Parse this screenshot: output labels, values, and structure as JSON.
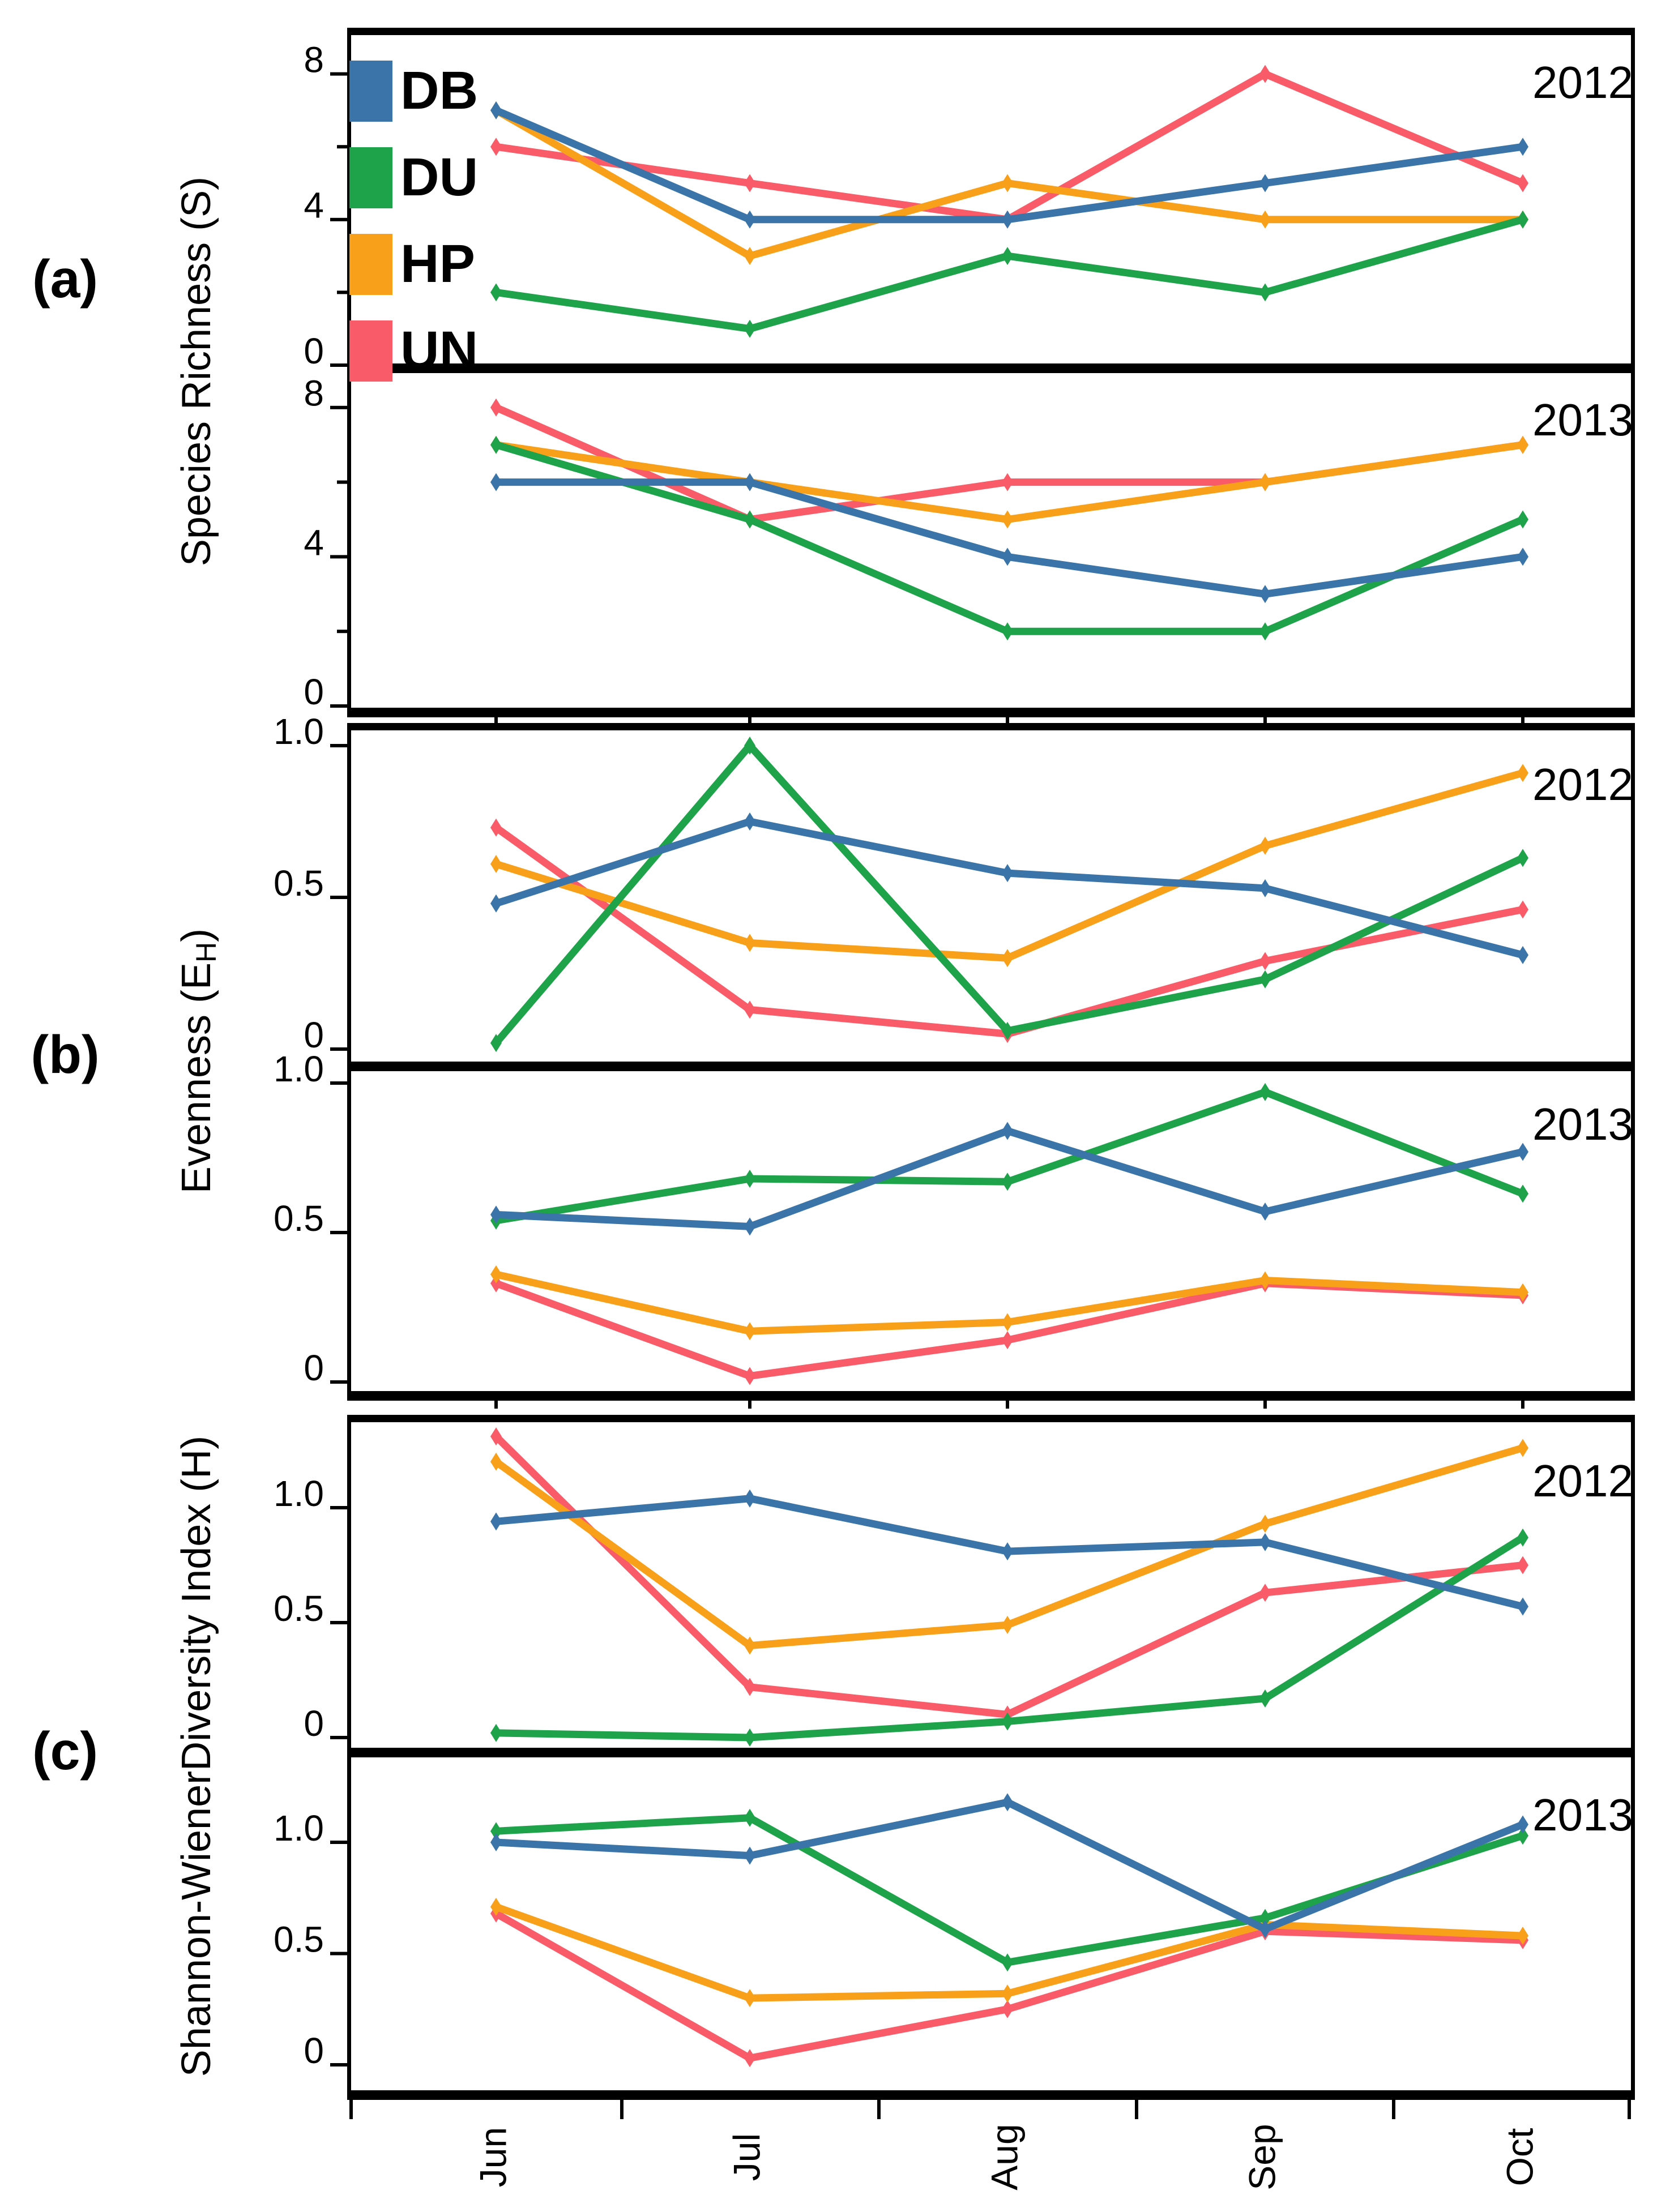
{
  "figure": {
    "background": "#ffffff",
    "frame_color": "#000000"
  },
  "months": [
    "Jun",
    "Jul",
    "Aug",
    "Sep",
    "Oct"
  ],
  "legend": {
    "items": [
      {
        "label": "DB",
        "color": "#3a74a8"
      },
      {
        "label": "DU",
        "color": "#1ea24a"
      },
      {
        "label": "HP",
        "color": "#f9a01b"
      },
      {
        "label": "UN",
        "color": "#f95b69"
      }
    ]
  },
  "panels": [
    {
      "letter": "(a)",
      "ylabel_pre": "Species Richness (S)",
      "ylabel_sub": "",
      "ylabel_post": ""
    },
    {
      "letter": "(b)",
      "ylabel_pre": "Evenness (E",
      "ylabel_sub": "H",
      "ylabel_post": ")"
    },
    {
      "letter": "(c)",
      "ylabel_pre": "Shannon-WienerDiversity Index (H)",
      "ylabel_sub": "",
      "ylabel_post": ""
    }
  ],
  "chart_data": [
    {
      "id": "a-2012",
      "type": "line",
      "panel": "(a)",
      "title": "2012",
      "ylabel": "Species Richness (S)",
      "x": [
        "Jun",
        "Jul",
        "Aug",
        "Sep",
        "Oct"
      ],
      "ylim": [
        0,
        8
      ],
      "yticks": [
        0,
        4,
        8
      ],
      "yminorticks": [
        2,
        6
      ],
      "grid": false,
      "legend_position": "upper-left",
      "series": [
        {
          "name": "DB",
          "color": "#3a74a8",
          "values": [
            7,
            4,
            4,
            5,
            6
          ]
        },
        {
          "name": "DU",
          "color": "#1ea24a",
          "values": [
            2,
            1,
            3,
            2,
            4
          ]
        },
        {
          "name": "HP",
          "color": "#f9a01b",
          "values": [
            7,
            3,
            5,
            4,
            4
          ]
        },
        {
          "name": "UN",
          "color": "#f95b69",
          "values": [
            6,
            5,
            4,
            8,
            5
          ]
        }
      ]
    },
    {
      "id": "a-2013",
      "type": "line",
      "panel": "(a)",
      "title": "2013",
      "ylabel": "Species Richness (S)",
      "x": [
        "Jun",
        "Jul",
        "Aug",
        "Sep",
        "Oct"
      ],
      "ylim": [
        0,
        8
      ],
      "yticks": [
        0,
        4,
        8
      ],
      "yminorticks": [
        2,
        6
      ],
      "grid": false,
      "series": [
        {
          "name": "DB",
          "color": "#3a74a8",
          "values": [
            6,
            6,
            4,
            3,
            4
          ]
        },
        {
          "name": "DU",
          "color": "#1ea24a",
          "values": [
            7,
            5,
            2,
            2,
            5
          ]
        },
        {
          "name": "HP",
          "color": "#f9a01b",
          "values": [
            7,
            6,
            5,
            6,
            7
          ]
        },
        {
          "name": "UN",
          "color": "#f95b69",
          "values": [
            8,
            5,
            6,
            6,
            7
          ]
        }
      ]
    },
    {
      "id": "b-2012",
      "type": "line",
      "panel": "(b)",
      "title": "2012",
      "ylabel": "Evenness (EH)",
      "x": [
        "Jun",
        "Jul",
        "Aug",
        "Sep",
        "Oct"
      ],
      "ylim": [
        0,
        1.0
      ],
      "yticks": [
        0,
        0.5,
        1.0
      ],
      "yminorticks": [],
      "grid": false,
      "series": [
        {
          "name": "DB",
          "color": "#3a74a8",
          "values": [
            0.48,
            0.75,
            0.58,
            0.53,
            0.31
          ]
        },
        {
          "name": "DU",
          "color": "#1ea24a",
          "values": [
            0.02,
            1.0,
            0.06,
            0.23,
            0.63
          ]
        },
        {
          "name": "HP",
          "color": "#f9a01b",
          "values": [
            0.61,
            0.35,
            0.3,
            0.67,
            0.91
          ]
        },
        {
          "name": "UN",
          "color": "#f95b69",
          "values": [
            0.73,
            0.13,
            0.05,
            0.29,
            0.46
          ]
        }
      ]
    },
    {
      "id": "b-2013",
      "type": "line",
      "panel": "(b)",
      "title": "2013",
      "ylabel": "Evenness (EH)",
      "x": [
        "Jun",
        "Jul",
        "Aug",
        "Sep",
        "Oct"
      ],
      "ylim": [
        0,
        1.0
      ],
      "yticks": [
        0,
        0.5,
        1.0
      ],
      "yminorticks": [],
      "grid": false,
      "series": [
        {
          "name": "DB",
          "color": "#3a74a8",
          "values": [
            0.56,
            0.52,
            0.84,
            0.57,
            0.77
          ]
        },
        {
          "name": "DU",
          "color": "#1ea24a",
          "values": [
            0.54,
            0.68,
            0.67,
            0.97,
            0.63
          ]
        },
        {
          "name": "HP",
          "color": "#f9a01b",
          "values": [
            0.36,
            0.17,
            0.2,
            0.34,
            0.3
          ]
        },
        {
          "name": "UN",
          "color": "#f95b69",
          "values": [
            0.33,
            0.02,
            0.14,
            0.33,
            0.29
          ]
        }
      ]
    },
    {
      "id": "c-2012",
      "type": "line",
      "panel": "(c)",
      "title": "2012",
      "ylabel": "Shannon-WienerDiversity Index (H)",
      "x": [
        "Jun",
        "Jul",
        "Aug",
        "Sep",
        "Oct"
      ],
      "ylim": [
        0,
        1.4
      ],
      "yticks": [
        0,
        0.5,
        1.0
      ],
      "yminorticks": [],
      "grid": false,
      "series": [
        {
          "name": "DB",
          "color": "#3a74a8",
          "values": [
            0.94,
            1.04,
            0.81,
            0.85,
            0.57
          ]
        },
        {
          "name": "DU",
          "color": "#1ea24a",
          "values": [
            0.02,
            0.0,
            0.07,
            0.17,
            0.87
          ]
        },
        {
          "name": "HP",
          "color": "#f9a01b",
          "values": [
            1.2,
            0.4,
            0.49,
            0.93,
            1.26
          ]
        },
        {
          "name": "UN",
          "color": "#f95b69",
          "values": [
            1.31,
            0.22,
            0.1,
            0.63,
            0.75
          ]
        }
      ]
    },
    {
      "id": "c-2013",
      "type": "line",
      "panel": "(c)",
      "title": "2013",
      "ylabel": "Shannon-WienerDiversity Index (H)",
      "x": [
        "Jun",
        "Jul",
        "Aug",
        "Sep",
        "Oct"
      ],
      "ylim": [
        0,
        1.4
      ],
      "yticks": [
        0,
        0.5,
        1.0
      ],
      "yminorticks": [],
      "grid": false,
      "series": [
        {
          "name": "DB",
          "color": "#3a74a8",
          "values": [
            1.0,
            0.94,
            1.18,
            0.61,
            1.08
          ]
        },
        {
          "name": "DU",
          "color": "#1ea24a",
          "values": [
            1.05,
            1.11,
            0.46,
            0.66,
            1.03
          ]
        },
        {
          "name": "HP",
          "color": "#f9a01b",
          "values": [
            0.71,
            0.3,
            0.32,
            0.63,
            0.58
          ]
        },
        {
          "name": "UN",
          "color": "#f95b69",
          "values": [
            0.68,
            0.03,
            0.25,
            0.6,
            0.56
          ]
        }
      ]
    }
  ],
  "ytick_labels": {
    "a": [
      "8",
      "4",
      "0"
    ],
    "b": [
      "1.0",
      "0.5",
      "0"
    ],
    "c": [
      "1.0",
      "0.5",
      "0"
    ]
  }
}
